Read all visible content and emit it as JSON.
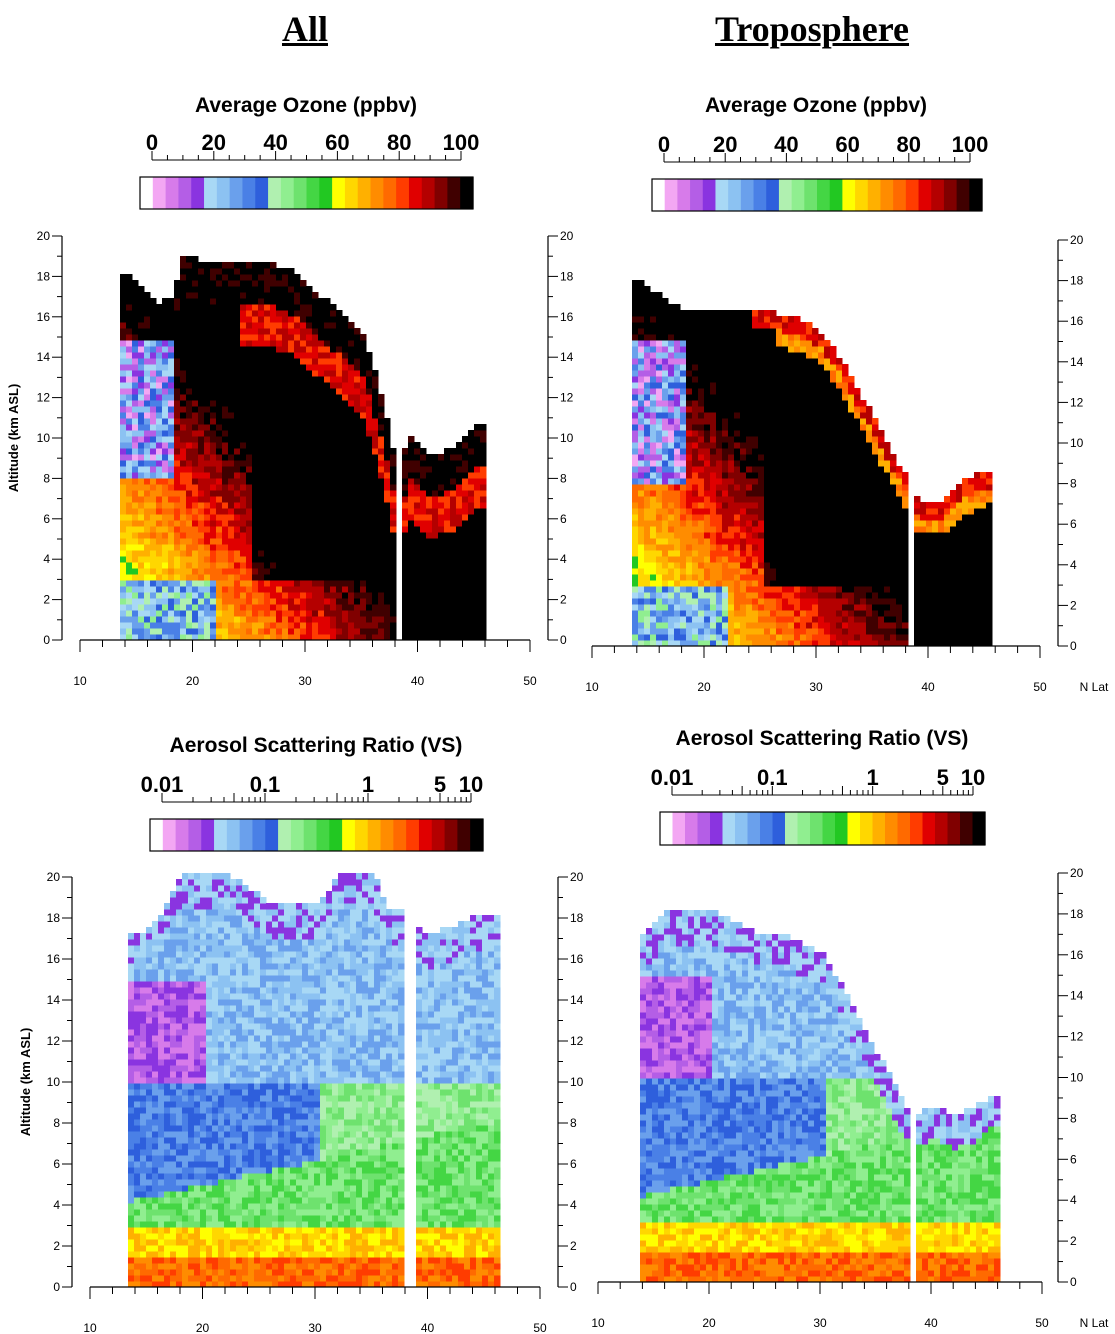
{
  "columns": [
    {
      "title": "All"
    },
    {
      "title": "Troposphere"
    }
  ],
  "chart_data": [
    {
      "type": "heatmap",
      "title": "Average Ozone (ppbv)",
      "ylabel": "Altitude (km ASL)",
      "xlabel": "",
      "xlim": [
        10,
        50
      ],
      "ylim": [
        0,
        20
      ],
      "x_ticks": [
        10,
        20,
        30,
        40,
        50
      ],
      "y_ticks": [
        0,
        2,
        4,
        6,
        8,
        10,
        12,
        14,
        16,
        18,
        20
      ],
      "colorbar": {
        "scale": "linear",
        "range": [
          0,
          100
        ],
        "tick_labels": [
          "0",
          "20",
          "40",
          "60",
          "80",
          "100"
        ]
      },
      "top_profile": [
        [
          14,
          18
        ],
        [
          15,
          17.5
        ],
        [
          16,
          17
        ],
        [
          17,
          16.5
        ],
        [
          18,
          17
        ],
        [
          19,
          19
        ],
        [
          21,
          18.5
        ],
        [
          23,
          18.5
        ],
        [
          25,
          18.5
        ],
        [
          27,
          18.5
        ],
        [
          29,
          18
        ],
        [
          31,
          17
        ],
        [
          33,
          16
        ],
        [
          35,
          15
        ],
        [
          36,
          13
        ],
        [
          37,
          11
        ],
        [
          38,
          8
        ],
        [
          39,
          10
        ],
        [
          41,
          9
        ],
        [
          43,
          9.5
        ],
        [
          45,
          10.5
        ],
        [
          46,
          10.5
        ]
      ]
    },
    {
      "type": "heatmap",
      "title": "Average Ozone (ppbv)",
      "ylabel": "",
      "xlabel": "N Lat",
      "xlim": [
        10,
        50
      ],
      "ylim": [
        0,
        20
      ],
      "x_ticks": [
        10,
        20,
        30,
        40,
        50
      ],
      "y_ticks": [
        0,
        2,
        4,
        6,
        8,
        10,
        12,
        14,
        16,
        18,
        20
      ],
      "colorbar": {
        "scale": "linear",
        "range": [
          0,
          100
        ],
        "tick_labels": [
          "0",
          "20",
          "40",
          "60",
          "80",
          "100"
        ]
      },
      "top_profile": [
        [
          14,
          18
        ],
        [
          16,
          17
        ],
        [
          18,
          16.5
        ],
        [
          20,
          16.5
        ],
        [
          22,
          16.5
        ],
        [
          24,
          16.5
        ],
        [
          26,
          16.3
        ],
        [
          28,
          16
        ],
        [
          30,
          15.5
        ],
        [
          32,
          14
        ],
        [
          34,
          12
        ],
        [
          36,
          10
        ],
        [
          37,
          9
        ],
        [
          38,
          8
        ],
        [
          39,
          7
        ],
        [
          41,
          7
        ],
        [
          43,
          8
        ],
        [
          45,
          8.5
        ],
        [
          46,
          8.5
        ]
      ]
    },
    {
      "type": "heatmap",
      "title": "Aerosol Scattering Ratio (VS)",
      "ylabel": "Altitude (km ASL)",
      "xlabel": "",
      "xlim": [
        10,
        50
      ],
      "ylim": [
        0,
        20
      ],
      "x_ticks": [
        10,
        20,
        30,
        40,
        50
      ],
      "y_ticks": [
        0,
        2,
        4,
        6,
        8,
        10,
        12,
        14,
        16,
        18,
        20
      ],
      "colorbar": {
        "scale": "log",
        "range": [
          0.01,
          10
        ],
        "tick_labels": [
          "0.01",
          "0.1",
          "1",
          "5",
          "10"
        ],
        "tick_values": [
          0.01,
          0.1,
          1,
          5,
          10
        ]
      },
      "top_profile": [
        [
          14,
          17
        ],
        [
          16,
          18
        ],
        [
          18,
          20
        ],
        [
          22,
          20
        ],
        [
          26,
          18.5
        ],
        [
          30,
          18.5
        ],
        [
          32,
          20
        ],
        [
          35,
          20
        ],
        [
          36,
          18.5
        ],
        [
          38,
          18
        ],
        [
          40,
          17
        ],
        [
          42,
          17.5
        ],
        [
          44,
          18
        ],
        [
          46,
          18
        ]
      ]
    },
    {
      "type": "heatmap",
      "title": "Aerosol Scattering Ratio (VS)",
      "ylabel": "",
      "xlabel": "N Lat",
      "xlim": [
        10,
        50
      ],
      "ylim": [
        0,
        20
      ],
      "x_ticks": [
        10,
        20,
        30,
        40,
        50
      ],
      "y_ticks": [
        0,
        2,
        4,
        6,
        8,
        10,
        12,
        14,
        16,
        18,
        20
      ],
      "colorbar": {
        "scale": "log",
        "range": [
          0.01,
          10
        ],
        "tick_labels": [
          "0.01",
          "0.1",
          "1",
          "5",
          "10"
        ],
        "tick_values": [
          0.01,
          0.1,
          1,
          5,
          10
        ]
      },
      "top_profile": [
        [
          14,
          17
        ],
        [
          16,
          18
        ],
        [
          18,
          18
        ],
        [
          20,
          18
        ],
        [
          22,
          17.5
        ],
        [
          24,
          17
        ],
        [
          26,
          17
        ],
        [
          28,
          16.5
        ],
        [
          30,
          16
        ],
        [
          32,
          14
        ],
        [
          34,
          12
        ],
        [
          36,
          10
        ],
        [
          37,
          9
        ],
        [
          38,
          8
        ],
        [
          40,
          8.5
        ],
        [
          42,
          8
        ],
        [
          44,
          8.5
        ],
        [
          45,
          9
        ]
      ]
    }
  ],
  "palette": [
    "#ffffff",
    "#f3a7f3",
    "#d77bea",
    "#b45ee6",
    "#8a34e0",
    "#a8d8f5",
    "#8cc2f2",
    "#6aa0ec",
    "#4a80e6",
    "#2e5fdc",
    "#b0f0b0",
    "#90ee90",
    "#6ee26e",
    "#44d644",
    "#22c822",
    "#ffff00",
    "#ffd700",
    "#ffb000",
    "#ff8c00",
    "#ff6a00",
    "#ff3c00",
    "#e00000",
    "#b40000",
    "#800000",
    "#400000",
    "#000000"
  ]
}
